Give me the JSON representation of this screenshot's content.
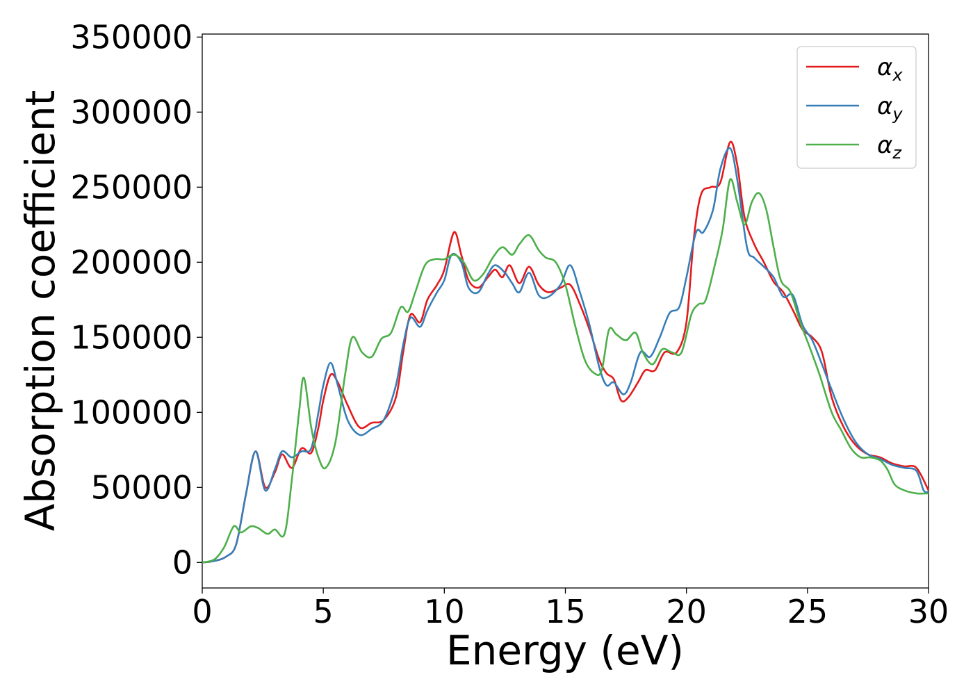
{
  "chart_data": {
    "type": "line",
    "title": "",
    "xlabel": "Energy (eV)",
    "ylabel": "Absorption coefficient",
    "xlim": [
      0,
      30
    ],
    "ylim": [
      -17000,
      352000
    ],
    "xticks": [
      0,
      5,
      10,
      15,
      20,
      25,
      30
    ],
    "yticks": [
      0,
      50000,
      100000,
      150000,
      200000,
      250000,
      300000,
      350000
    ],
    "grid": false,
    "legend_position": "top-right",
    "series": [
      {
        "name": "αx",
        "legend_base": "α",
        "legend_sub": "x",
        "color": "#e41a1c",
        "points": [
          [
            0,
            0
          ],
          [
            0.5,
            1000
          ],
          [
            1.0,
            4000
          ],
          [
            1.4,
            12000
          ],
          [
            1.8,
            45000
          ],
          [
            2.2,
            74000
          ],
          [
            2.6,
            50000
          ],
          [
            3.0,
            60000
          ],
          [
            3.3,
            72000
          ],
          [
            3.7,
            63000
          ],
          [
            4.1,
            76000
          ],
          [
            4.5,
            73000
          ],
          [
            4.8,
            90000
          ],
          [
            5.0,
            108000
          ],
          [
            5.3,
            125000
          ],
          [
            5.6,
            120000
          ],
          [
            6.0,
            105000
          ],
          [
            6.5,
            90000
          ],
          [
            7.0,
            93000
          ],
          [
            7.5,
            95000
          ],
          [
            8.0,
            110000
          ],
          [
            8.3,
            140000
          ],
          [
            8.6,
            165000
          ],
          [
            9.0,
            160000
          ],
          [
            9.3,
            175000
          ],
          [
            9.7,
            185000
          ],
          [
            10.0,
            195000
          ],
          [
            10.4,
            220000
          ],
          [
            10.7,
            205000
          ],
          [
            11.0,
            188000
          ],
          [
            11.4,
            183000
          ],
          [
            11.8,
            190000
          ],
          [
            12.1,
            195000
          ],
          [
            12.4,
            190000
          ],
          [
            12.7,
            198000
          ],
          [
            13.1,
            186000
          ],
          [
            13.5,
            197000
          ],
          [
            13.9,
            185000
          ],
          [
            14.3,
            180000
          ],
          [
            14.8,
            183000
          ],
          [
            15.2,
            185000
          ],
          [
            15.6,
            172000
          ],
          [
            16.0,
            155000
          ],
          [
            16.4,
            135000
          ],
          [
            16.7,
            126000
          ],
          [
            17.0,
            122000
          ],
          [
            17.3,
            108000
          ],
          [
            17.6,
            110000
          ],
          [
            18.0,
            120000
          ],
          [
            18.3,
            128000
          ],
          [
            18.7,
            128000
          ],
          [
            19.1,
            140000
          ],
          [
            19.6,
            140000
          ],
          [
            20.0,
            160000
          ],
          [
            20.3,
            215000
          ],
          [
            20.6,
            245000
          ],
          [
            21.0,
            250000
          ],
          [
            21.4,
            253000
          ],
          [
            21.8,
            280000
          ],
          [
            22.1,
            265000
          ],
          [
            22.4,
            230000
          ],
          [
            22.8,
            212000
          ],
          [
            23.2,
            200000
          ],
          [
            23.6,
            187000
          ],
          [
            24.0,
            180000
          ],
          [
            24.4,
            168000
          ],
          [
            24.8,
            155000
          ],
          [
            25.2,
            150000
          ],
          [
            25.6,
            140000
          ],
          [
            26.0,
            110000
          ],
          [
            26.5,
            90000
          ],
          [
            27.0,
            78000
          ],
          [
            27.5,
            72000
          ],
          [
            28.0,
            70000
          ],
          [
            28.5,
            66000
          ],
          [
            29.0,
            64000
          ],
          [
            29.5,
            63000
          ],
          [
            30,
            48000
          ]
        ]
      },
      {
        "name": "αy",
        "legend_base": "α",
        "legend_sub": "y",
        "color": "#377eb8",
        "points": [
          [
            0,
            0
          ],
          [
            0.5,
            1000
          ],
          [
            1.0,
            4000
          ],
          [
            1.4,
            12000
          ],
          [
            1.8,
            45000
          ],
          [
            2.2,
            74000
          ],
          [
            2.6,
            48000
          ],
          [
            3.0,
            62000
          ],
          [
            3.3,
            74000
          ],
          [
            3.7,
            70000
          ],
          [
            4.1,
            74000
          ],
          [
            4.5,
            76000
          ],
          [
            4.8,
            100000
          ],
          [
            5.0,
            118000
          ],
          [
            5.3,
            133000
          ],
          [
            5.6,
            118000
          ],
          [
            6.0,
            95000
          ],
          [
            6.5,
            85000
          ],
          [
            7.0,
            89000
          ],
          [
            7.5,
            95000
          ],
          [
            8.0,
            118000
          ],
          [
            8.3,
            145000
          ],
          [
            8.6,
            163000
          ],
          [
            9.0,
            157000
          ],
          [
            9.3,
            168000
          ],
          [
            9.7,
            180000
          ],
          [
            10.0,
            188000
          ],
          [
            10.3,
            205000
          ],
          [
            10.7,
            200000
          ],
          [
            11.0,
            183000
          ],
          [
            11.4,
            180000
          ],
          [
            11.8,
            192000
          ],
          [
            12.1,
            198000
          ],
          [
            12.5,
            193000
          ],
          [
            12.8,
            186000
          ],
          [
            13.1,
            180000
          ],
          [
            13.5,
            193000
          ],
          [
            13.9,
            178000
          ],
          [
            14.3,
            177000
          ],
          [
            14.8,
            185000
          ],
          [
            15.2,
            198000
          ],
          [
            15.6,
            180000
          ],
          [
            16.0,
            158000
          ],
          [
            16.4,
            130000
          ],
          [
            16.7,
            118000
          ],
          [
            17.0,
            120000
          ],
          [
            17.4,
            112000
          ],
          [
            17.7,
            120000
          ],
          [
            18.1,
            140000
          ],
          [
            18.5,
            137000
          ],
          [
            18.9,
            150000
          ],
          [
            19.3,
            166000
          ],
          [
            19.7,
            170000
          ],
          [
            20.0,
            190000
          ],
          [
            20.4,
            220000
          ],
          [
            20.7,
            220000
          ],
          [
            21.1,
            235000
          ],
          [
            21.4,
            262000
          ],
          [
            21.8,
            276000
          ],
          [
            22.1,
            255000
          ],
          [
            22.5,
            210000
          ],
          [
            22.8,
            203000
          ],
          [
            23.2,
            197000
          ],
          [
            23.6,
            190000
          ],
          [
            24.0,
            177000
          ],
          [
            24.4,
            178000
          ],
          [
            24.8,
            158000
          ],
          [
            25.2,
            148000
          ],
          [
            25.6,
            132000
          ],
          [
            26.0,
            115000
          ],
          [
            26.5,
            95000
          ],
          [
            27.0,
            80000
          ],
          [
            27.5,
            72000
          ],
          [
            28.0,
            69000
          ],
          [
            28.5,
            65000
          ],
          [
            29.0,
            63000
          ],
          [
            29.5,
            61000
          ],
          [
            29.8,
            48000
          ],
          [
            30,
            47000
          ]
        ]
      },
      {
        "name": "αz",
        "legend_base": "α",
        "legend_sub": "z",
        "color": "#4daf4a",
        "points": [
          [
            0,
            0
          ],
          [
            0.5,
            2000
          ],
          [
            0.9,
            10000
          ],
          [
            1.3,
            24000
          ],
          [
            1.6,
            20000
          ],
          [
            2.0,
            24000
          ],
          [
            2.3,
            23000
          ],
          [
            2.7,
            19000
          ],
          [
            3.0,
            22000
          ],
          [
            3.4,
            19000
          ],
          [
            3.7,
            55000
          ],
          [
            4.0,
            100000
          ],
          [
            4.2,
            123000
          ],
          [
            4.5,
            90000
          ],
          [
            4.8,
            70000
          ],
          [
            5.1,
            63000
          ],
          [
            5.5,
            80000
          ],
          [
            5.9,
            125000
          ],
          [
            6.2,
            150000
          ],
          [
            6.6,
            140000
          ],
          [
            7.0,
            137000
          ],
          [
            7.4,
            149000
          ],
          [
            7.8,
            153000
          ],
          [
            8.2,
            170000
          ],
          [
            8.5,
            167000
          ],
          [
            8.8,
            180000
          ],
          [
            9.2,
            198000
          ],
          [
            9.6,
            202000
          ],
          [
            10.0,
            202000
          ],
          [
            10.4,
            205000
          ],
          [
            10.8,
            200000
          ],
          [
            11.2,
            188000
          ],
          [
            11.6,
            192000
          ],
          [
            12.0,
            203000
          ],
          [
            12.4,
            210000
          ],
          [
            12.8,
            205000
          ],
          [
            13.1,
            212000
          ],
          [
            13.5,
            218000
          ],
          [
            13.9,
            208000
          ],
          [
            14.2,
            203000
          ],
          [
            14.6,
            200000
          ],
          [
            15.0,
            185000
          ],
          [
            15.4,
            158000
          ],
          [
            15.8,
            135000
          ],
          [
            16.2,
            126000
          ],
          [
            16.5,
            128000
          ],
          [
            16.8,
            155000
          ],
          [
            17.1,
            152000
          ],
          [
            17.5,
            148000
          ],
          [
            17.9,
            153000
          ],
          [
            18.2,
            140000
          ],
          [
            18.6,
            132000
          ],
          [
            19.0,
            142000
          ],
          [
            19.4,
            140000
          ],
          [
            19.8,
            140000
          ],
          [
            20.2,
            165000
          ],
          [
            20.5,
            172000
          ],
          [
            20.8,
            175000
          ],
          [
            21.2,
            200000
          ],
          [
            21.5,
            222000
          ],
          [
            21.8,
            255000
          ],
          [
            22.1,
            240000
          ],
          [
            22.4,
            225000
          ],
          [
            22.7,
            240000
          ],
          [
            23.0,
            246000
          ],
          [
            23.3,
            235000
          ],
          [
            23.6,
            210000
          ],
          [
            23.9,
            188000
          ],
          [
            24.3,
            180000
          ],
          [
            24.7,
            160000
          ],
          [
            25.1,
            143000
          ],
          [
            25.5,
            125000
          ],
          [
            26.0,
            100000
          ],
          [
            26.4,
            88000
          ],
          [
            26.8,
            76000
          ],
          [
            27.2,
            70000
          ],
          [
            27.6,
            70000
          ],
          [
            28.0,
            68000
          ],
          [
            28.3,
            62000
          ],
          [
            28.6,
            52000
          ],
          [
            29.0,
            48000
          ],
          [
            29.5,
            46000
          ],
          [
            30,
            46000
          ]
        ]
      }
    ]
  }
}
